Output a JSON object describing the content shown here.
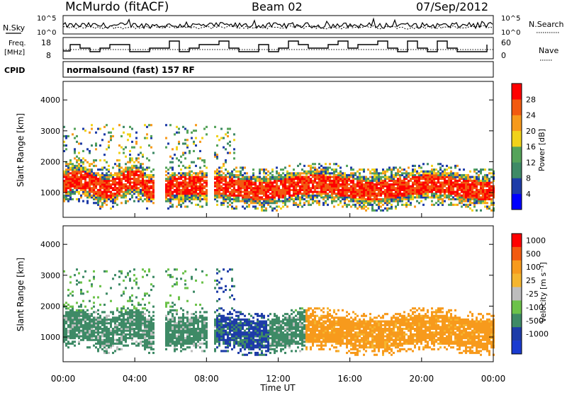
{
  "header": {
    "station": "McMurdo (fitACF)",
    "beam": "Beam 02",
    "date": "07/Sep/2012"
  },
  "aux_panels": {
    "nsky_label": "N.Sky",
    "nsearch_label": "N.Search",
    "nsky_ticks": [
      "10^5",
      "10^0"
    ],
    "freq_label_line1": "Freq.",
    "freq_label_line2": "[MHz]",
    "freq_ticks": [
      "18",
      "8"
    ],
    "nave_label": "Nave",
    "nave_ticks": [
      "60",
      "0"
    ],
    "cpid_label": "CPID",
    "cpid_value": "normalsound (fast) 157 RF"
  },
  "colors": {
    "power": [
      "#0000ff",
      "#1e3ca8",
      "#3e8a66",
      "#55a35a",
      "#f1d21a",
      "#f79a1c",
      "#f25a10",
      "#ff0000"
    ],
    "velocity": [
      "#ff0000",
      "#f25a10",
      "#f79a1c",
      "#f5b52e",
      "#bdbdbd",
      "#6cc24a",
      "#3e8a66",
      "#1e3ca8",
      "#1a3bd0"
    ]
  },
  "chart_data": [
    {
      "type": "heatmap",
      "name": "power",
      "xlabel": "",
      "ylabel": "Slant Range [km]",
      "x_ticks": [
        "00:00",
        "04:00",
        "08:00",
        "12:00",
        "16:00",
        "20:00",
        "00:00"
      ],
      "y_ticks": [
        "1000",
        "2000",
        "3000",
        "4000"
      ],
      "ylim": [
        200,
        4600
      ],
      "colorbar_label": "Power [dB]",
      "colorbar_ticks": [
        "4",
        "8",
        "12",
        "16",
        "20",
        "24",
        "28"
      ]
    },
    {
      "type": "heatmap",
      "name": "velocity",
      "xlabel": "Time UT",
      "ylabel": "Slant Range [km]",
      "x_ticks": [
        "00:00",
        "04:00",
        "08:00",
        "12:00",
        "16:00",
        "20:00",
        "00:00"
      ],
      "y_ticks": [
        "1000",
        "2000",
        "3000",
        "4000"
      ],
      "ylim": [
        200,
        4600
      ],
      "colorbar_label": "Velocity [m s⁻¹]",
      "colorbar_ticks": [
        "1000",
        "500",
        "100",
        "25",
        "-25",
        "-100",
        "-500",
        "-1000"
      ]
    }
  ]
}
